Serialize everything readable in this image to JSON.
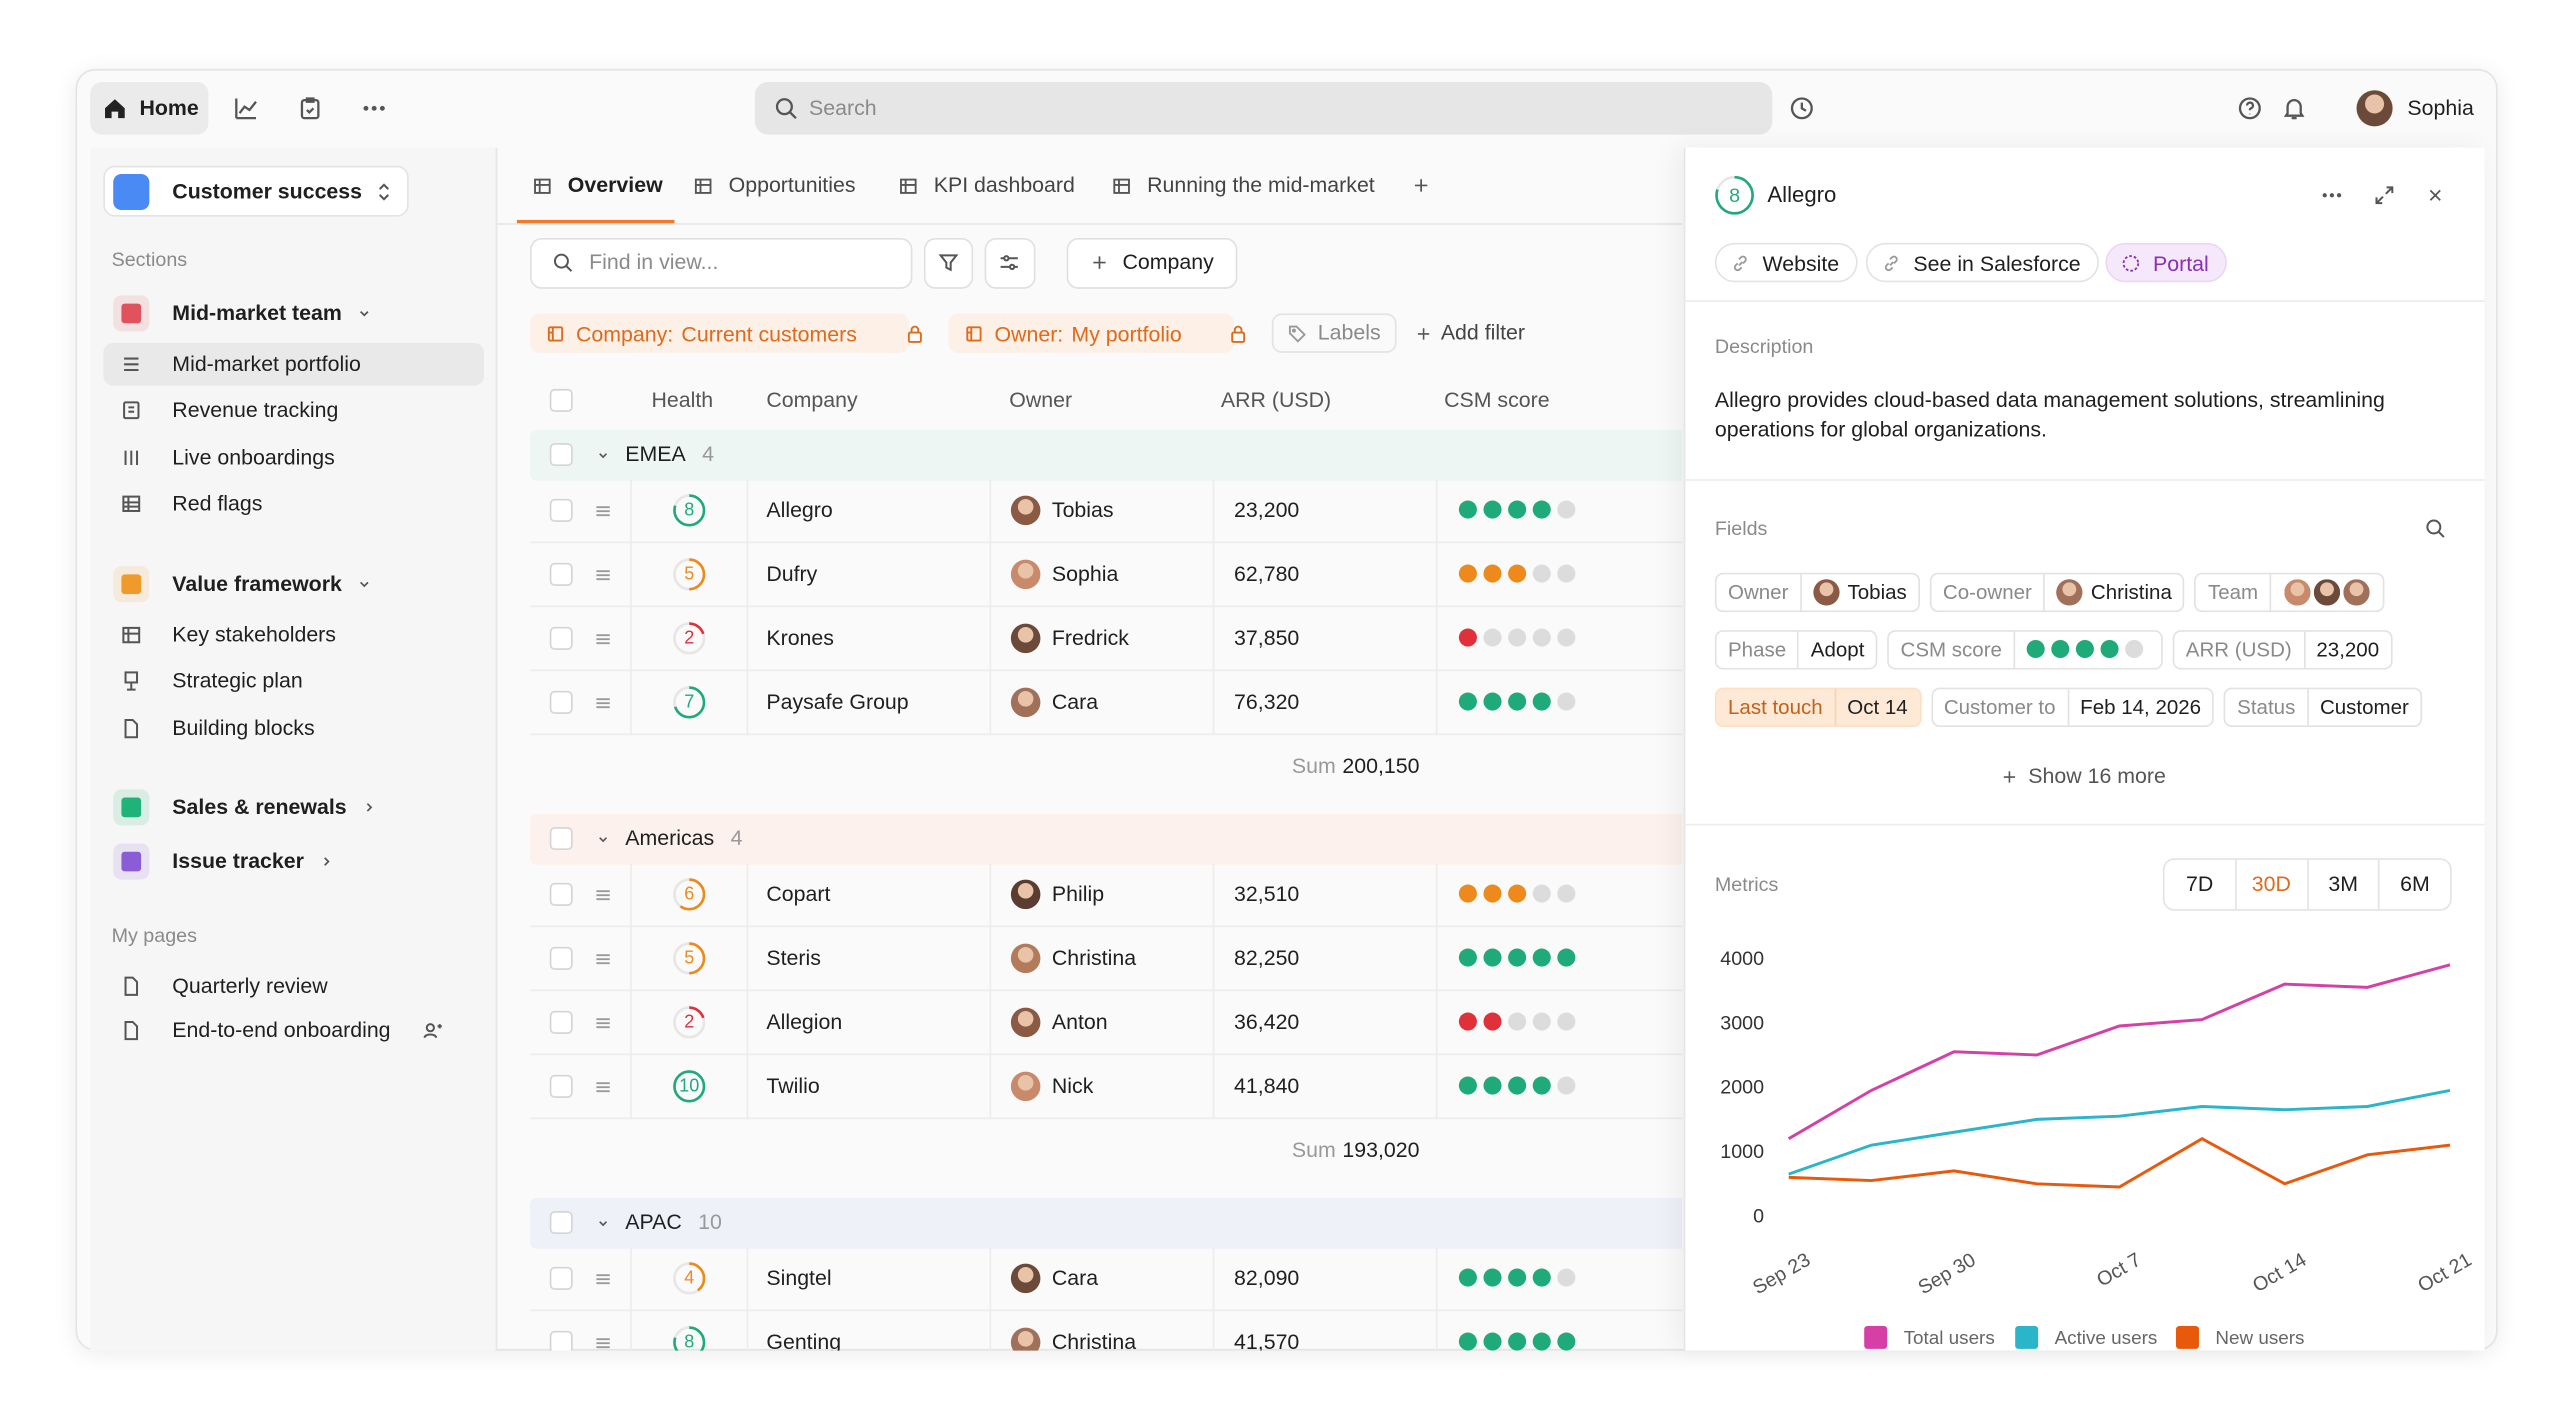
{
  "nav": {
    "home": "Home",
    "search": "Search",
    "user": "Sophia"
  },
  "sidebar": {
    "workspace": "Customer success",
    "sections_label": "Sections",
    "sections": [
      {
        "title": "Mid-market team",
        "items": [
          "Mid-market portfolio",
          "Revenue tracking",
          "Live onboardings",
          "Red flags"
        ]
      },
      {
        "title": "Value framework",
        "items": [
          "Key stakeholders",
          "Strategic plan",
          "Building blocks"
        ]
      },
      {
        "title": "Sales & renewals",
        "items": []
      },
      {
        "title": "Issue tracker",
        "items": []
      }
    ],
    "my_pages_label": "My pages",
    "pages": [
      "Quarterly review",
      "End-to-end onboarding"
    ]
  },
  "tabs": [
    "Overview",
    "Opportunities",
    "KPI dashboard",
    "Running the mid-market"
  ],
  "toolbar": {
    "find": "Find in view...",
    "add": "Company"
  },
  "filters": [
    {
      "field": "Company:",
      "value": "Current customers"
    },
    {
      "field": "Owner:",
      "value": "My portfolio"
    }
  ],
  "labels": "Labels",
  "add_filter": "Add filter",
  "table": {
    "columns": [
      "Health",
      "Company",
      "Owner",
      "ARR (USD)",
      "CSM score"
    ],
    "groups": [
      {
        "name": "EMEA",
        "count": 4,
        "rows": [
          {
            "health": 8,
            "company": "Allegro",
            "owner": "Tobias",
            "arr": "23,200",
            "csm": 4
          },
          {
            "health": 5,
            "company": "Dufry",
            "owner": "Sophia",
            "arr": "62,780",
            "csm": 3
          },
          {
            "health": 2,
            "company": "Krones",
            "owner": "Fredrick",
            "arr": "37,850",
            "csm": 1
          },
          {
            "health": 7,
            "company": "Paysafe Group",
            "owner": "Cara",
            "arr": "76,320",
            "csm": 4
          }
        ],
        "sum_label": "Sum",
        "sum": "200,150"
      },
      {
        "name": "Americas",
        "count": 4,
        "rows": [
          {
            "health": 6,
            "company": "Copart",
            "owner": "Philip",
            "arr": "32,510",
            "csm": 3
          },
          {
            "health": 5,
            "company": "Steris",
            "owner": "Christina",
            "arr": "82,250",
            "csm": 5
          },
          {
            "health": 2,
            "company": "Allegion",
            "owner": "Anton",
            "arr": "36,420",
            "csm": 2
          },
          {
            "health": 10,
            "company": "Twilio",
            "owner": "Nick",
            "arr": "41,840",
            "csm": 4
          }
        ],
        "sum_label": "Sum",
        "sum": "193,020"
      },
      {
        "name": "APAC",
        "count": 10,
        "rows": [
          {
            "health": 4,
            "company": "Singtel",
            "owner": "Cara",
            "arr": "82,090",
            "csm": 4
          },
          {
            "health": 8,
            "company": "Genting",
            "owner": "Christina",
            "arr": "41,570",
            "csm": 5
          }
        ]
      }
    ]
  },
  "detail": {
    "score": 8,
    "title": "Allegro",
    "links": [
      "Website",
      "See in Salesforce",
      "Portal"
    ],
    "description_label": "Description",
    "description": "Allegro provides cloud-based data management solutions, streamlining operations for global organizations.",
    "fields_label": "Fields",
    "fields": [
      {
        "label": "Owner",
        "value": "Tobias"
      },
      {
        "label": "Co-owner",
        "value": "Christina"
      },
      {
        "label": "Team"
      },
      {
        "label": "Phase",
        "value": "Adopt"
      },
      {
        "label": "CSM score",
        "score": 4
      },
      {
        "label": "ARR (USD)",
        "value": "23,200"
      },
      {
        "label": "Last touch",
        "value": "Oct 14"
      },
      {
        "label": "Customer to",
        "value": "Feb 14, 2026"
      },
      {
        "label": "Status",
        "value": "Customer"
      }
    ],
    "show_more": "Show 16 more",
    "metrics_label": "Metrics",
    "ranges": [
      "7D",
      "30D",
      "3M",
      "6M"
    ],
    "active_range": "30D"
  },
  "chart_data": {
    "type": "line",
    "categories": [
      "Sep 23",
      null,
      "Sep 30",
      null,
      "Oct 7",
      null,
      "Oct 14",
      null,
      "Oct 21"
    ],
    "ylim": [
      0,
      4000
    ],
    "yticks": [
      0,
      1000,
      2000,
      3000,
      4000
    ],
    "legend": "bottom",
    "series": [
      {
        "name": "Total users",
        "color": "#d63fa5",
        "values": [
          1200,
          1950,
          2550,
          2500,
          2950,
          3050,
          3600,
          3550,
          3900
        ]
      },
      {
        "name": "Active users",
        "color": "#2bb5c8",
        "values": [
          650,
          1100,
          1300,
          1500,
          1550,
          1700,
          1650,
          1700,
          1950
        ]
      },
      {
        "name": "New users",
        "color": "#e8590c",
        "values": [
          600,
          550,
          700,
          500,
          450,
          1200,
          500,
          950,
          1100
        ]
      }
    ]
  }
}
